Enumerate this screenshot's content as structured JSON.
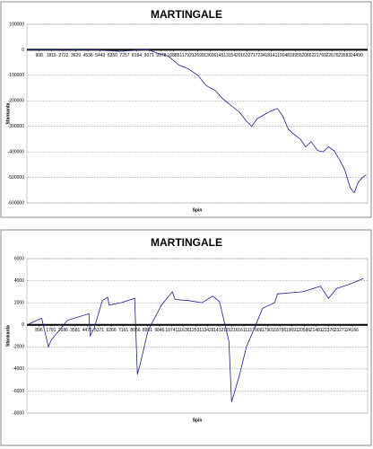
{
  "chart_data": [
    {
      "type": "line",
      "title": "MARTINGALE",
      "x_label": "Spin",
      "y_label": "Stankanta",
      "color": "#1a237e",
      "grid": true,
      "xlim": [
        0,
        25300
      ],
      "xticks": [
        908,
        1815,
        2722,
        3629,
        4536,
        5443,
        6350,
        7257,
        8164,
        9071,
        9978,
        10885,
        11792,
        12699,
        13606,
        14513,
        15420,
        16327,
        17234,
        18141,
        19048,
        19955,
        20862,
        21769,
        22676,
        23583,
        24490
      ],
      "ylim": [
        -600000,
        100000
      ],
      "yticks": [
        100000,
        0,
        -100000,
        -200000,
        -300000,
        -400000,
        -500000,
        -600000
      ],
      "x": [
        0,
        1500,
        3000,
        4500,
        6000,
        7000,
        8000,
        9000,
        9800,
        10500,
        11300,
        12000,
        12700,
        13300,
        14000,
        14500,
        15200,
        15800,
        16300,
        16700,
        17100,
        17600,
        18100,
        18600,
        19000,
        19400,
        19800,
        20300,
        20700,
        21100,
        21600,
        22000,
        22400,
        22800,
        23200,
        23600,
        24000,
        24300,
        24600,
        24900,
        25200
      ],
      "values": [
        0,
        0,
        -2000,
        0,
        -3000,
        -6000,
        -2000,
        0,
        -15000,
        -25000,
        -60000,
        -75000,
        -100000,
        -140000,
        -160000,
        -190000,
        -220000,
        -245000,
        -280000,
        -300000,
        -270000,
        -255000,
        -240000,
        -230000,
        -260000,
        -310000,
        -330000,
        -350000,
        -380000,
        -360000,
        -395000,
        -400000,
        -380000,
        -395000,
        -430000,
        -470000,
        -540000,
        -560000,
        -520000,
        -500000,
        -490000
      ]
    },
    {
      "type": "line",
      "title": "MARTINGALE",
      "x_label": "Spin",
      "y_label": "Stankanta",
      "color": "#1a237e",
      "grid": true,
      "xlim": [
        0,
        25300
      ],
      "xticks": [
        896,
        1791,
        2686,
        3581,
        4476,
        5371,
        6266,
        7161,
        8056,
        8951,
        9846,
        10741,
        11636,
        12531,
        13426,
        14321,
        15216,
        16111,
        17006,
        17901,
        18796,
        19691,
        20586,
        21481,
        22376,
        23271,
        24166
      ],
      "ylim": [
        -8000,
        6000
      ],
      "yticks": [
        6000,
        4000,
        2000,
        0,
        -2000,
        -4000,
        -6000,
        -8000
      ],
      "x": [
        0,
        1100,
        1600,
        1800,
        3000,
        4600,
        4700,
        5000,
        5600,
        6000,
        6100,
        7000,
        8000,
        8200,
        8400,
        9000,
        10000,
        10800,
        11000,
        12000,
        13000,
        13800,
        14300,
        15000,
        15200,
        15800,
        16300,
        17000,
        17500,
        18400,
        18600,
        19500,
        20500,
        21800,
        22400,
        23000,
        24000,
        25000
      ],
      "values": [
        0,
        600,
        -2000,
        -1400,
        400,
        1000,
        -1000,
        -300,
        2200,
        2500,
        1800,
        2000,
        2400,
        -4500,
        -3600,
        -500,
        1800,
        3000,
        2300,
        2200,
        2000,
        2600,
        2100,
        -1500,
        -7000,
        -4500,
        -2000,
        0,
        1500,
        2000,
        2800,
        2900,
        3000,
        3500,
        2400,
        3300,
        3700,
        4200
      ]
    }
  ]
}
